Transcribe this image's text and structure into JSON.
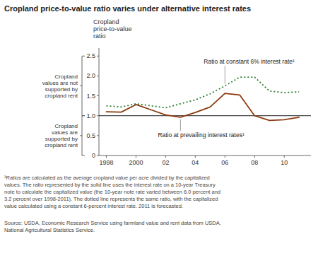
{
  "chart_data": {
    "type": "line",
    "title": "Cropland price-to-value ratio varies under alternative interest rates",
    "ylabel": "Cropland\nprice-to-value\nratio",
    "x": [
      1998,
      1999,
      2000,
      2001,
      2002,
      2003,
      2004,
      2005,
      2006,
      2007,
      2008,
      2009,
      2010,
      2011
    ],
    "series": [
      {
        "name": "Ratio at prevailing interest rates¹",
        "color": "#8B3A0F",
        "line_style": "solid",
        "values": [
          1.1,
          1.09,
          1.28,
          1.15,
          1.02,
          0.96,
          1.08,
          1.22,
          1.56,
          1.52,
          1.0,
          0.88,
          0.9,
          0.96
        ]
      },
      {
        "name": "Ratio at constant 6% interest rate¹",
        "color": "#2E7D32",
        "line_style": "dotted",
        "values": [
          1.25,
          1.22,
          1.3,
          1.25,
          1.2,
          1.3,
          1.4,
          1.55,
          1.75,
          1.97,
          1.97,
          1.62,
          1.58,
          1.6
        ]
      }
    ],
    "xlim": [
      1997.5,
      2011.8
    ],
    "xticks": [
      1998,
      2000,
      {
        "value": 2002,
        "label": "02"
      },
      {
        "value": 2004,
        "label": "04"
      },
      {
        "value": 2006,
        "label": "06"
      },
      {
        "value": 2008,
        "label": "08"
      },
      {
        "value": 2010,
        "label": "10"
      }
    ],
    "ylim": [
      0,
      2.7
    ],
    "yticks": [
      0,
      0.5,
      {
        "value": 1.0,
        "label": "1.0"
      },
      1.5,
      {
        "value": 2.0,
        "label": "2.0"
      },
      2.5
    ],
    "reference_line": 1.0,
    "brackets": [
      {
        "text": "Cropland\nvalues are not\nsupported by\ncropland rent",
        "from": 1.0,
        "to": 2.5
      },
      {
        "text": "Cropland\nvalues are\nsupported by\ncropland rent",
        "from": 0,
        "to": 1.0
      }
    ],
    "footnote": "¹Ratios are calculated as the average cropland value per acre divided by the capitalized\nvalues. The ratio represented by the solid line uses the interest rate on a 10-year Treasury\nnote to calculate the capitalized value (the 10-year note rate varied between 6.0 percent and\n3.2 percent over 1998-2011). The dotted line represents the same ratio, with the capitalized\nvalue calculated using a constant 6-percent interest rate. 2011 is forecasted.",
    "source": "Source: USDA, Economic Research Service using farmland value and rent data from USDA,\nNational Agricultural Statistics Service."
  }
}
